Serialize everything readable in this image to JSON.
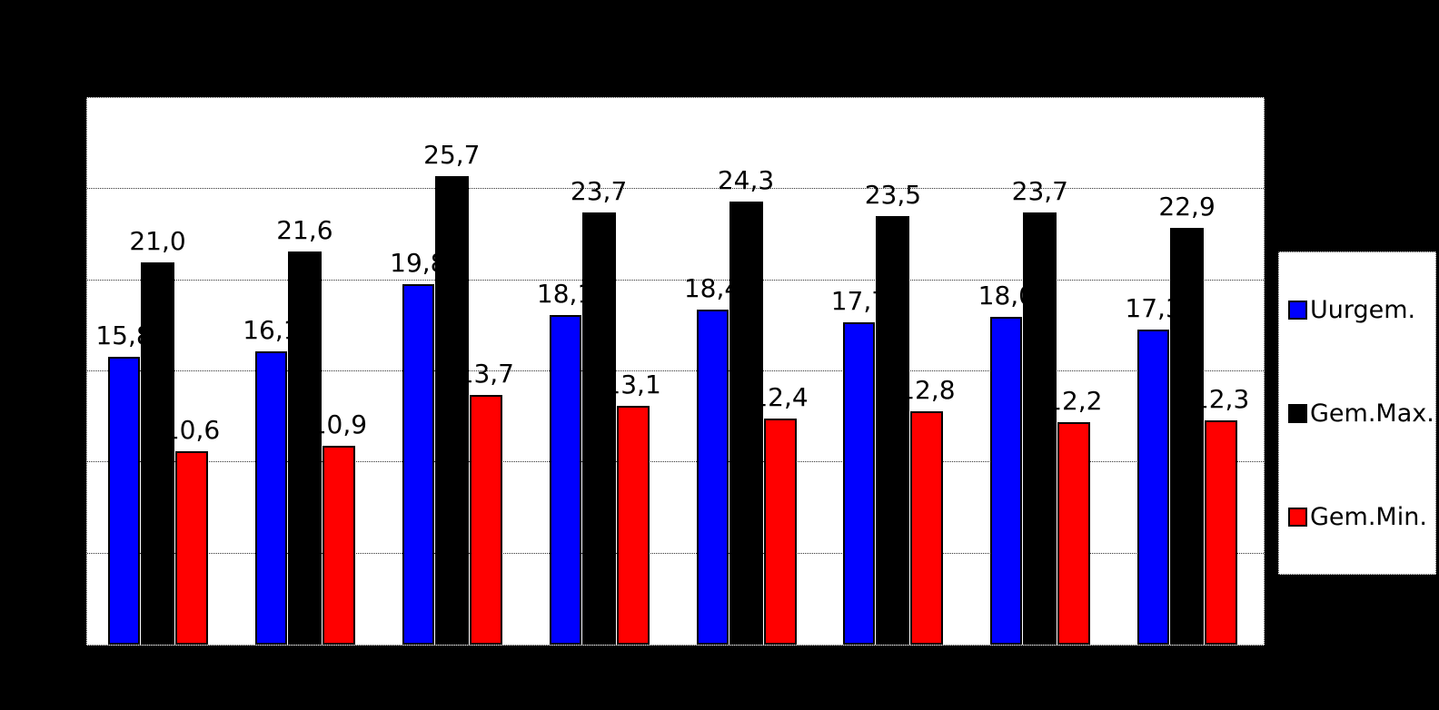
{
  "page": {
    "background_color": "#000000",
    "title": ""
  },
  "chart_data": {
    "type": "bar",
    "title": "",
    "xlabel": "",
    "ylabel": "",
    "groups": 8,
    "x_tick_labels_visible": false,
    "y_axis": {
      "min": 0,
      "max": 30,
      "gridline_step": 5,
      "tick_labels_visible": false
    },
    "grid": true,
    "legend_position": "right",
    "plot_background": "#ffffff",
    "decimal_separator": ",",
    "series": [
      {
        "name": "Uurgem.",
        "color": "#0000ff",
        "values": [
          15.8,
          16.1,
          19.8,
          18.1,
          18.4,
          17.7,
          18.0,
          17.3
        ],
        "labels": [
          "15,8",
          "16,1",
          "19,8",
          "18,1",
          "18,4",
          "17,7",
          "18,0",
          "17,3"
        ]
      },
      {
        "name": "Gem.Max.",
        "color": "#000000",
        "values": [
          21.0,
          21.6,
          25.7,
          23.7,
          24.3,
          23.5,
          23.7,
          22.9
        ],
        "labels": [
          "21,0",
          "21,6",
          "25,7",
          "23,7",
          "24,3",
          "23,5",
          "23,7",
          "22,9"
        ]
      },
      {
        "name": "Gem.Min.",
        "color": "#ff0000",
        "values": [
          10.6,
          10.9,
          13.7,
          13.1,
          12.4,
          12.8,
          12.2,
          12.3
        ],
        "labels": [
          "10,6",
          "10,9",
          "13,7",
          "13,1",
          "12,4",
          "12,8",
          "12,2",
          "12,3"
        ]
      }
    ]
  }
}
